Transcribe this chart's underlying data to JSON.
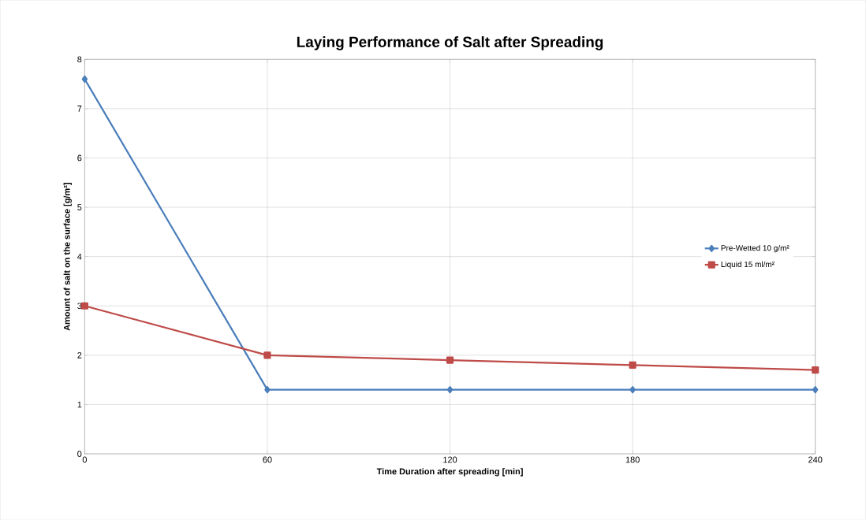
{
  "chart_data": {
    "type": "line",
    "title": "Laying Performance of Salt after Spreading",
    "xlabel": "Time Duration after spreading [min]",
    "ylabel": "Amount of salt on the surface [g/m²]",
    "x": [
      0,
      60,
      120,
      180,
      240
    ],
    "series": [
      {
        "name": "Pre-Wetted 10 g/m²",
        "color": "#4a7ebb",
        "marker": "diamond",
        "values": [
          7.6,
          1.3,
          1.3,
          1.3,
          1.3
        ]
      },
      {
        "name": "Liquid 15 ml/m²",
        "color": "#be4b48",
        "marker": "square",
        "values": [
          3.0,
          2.0,
          1.9,
          1.8,
          1.7
        ]
      }
    ],
    "xlim": [
      0,
      240
    ],
    "ylim": [
      0,
      8
    ],
    "xticks": [
      0,
      60,
      120,
      180,
      240
    ],
    "yticks": [
      0,
      1,
      2,
      3,
      4,
      5,
      6,
      7,
      8
    ],
    "grid": true,
    "legend": "right"
  }
}
